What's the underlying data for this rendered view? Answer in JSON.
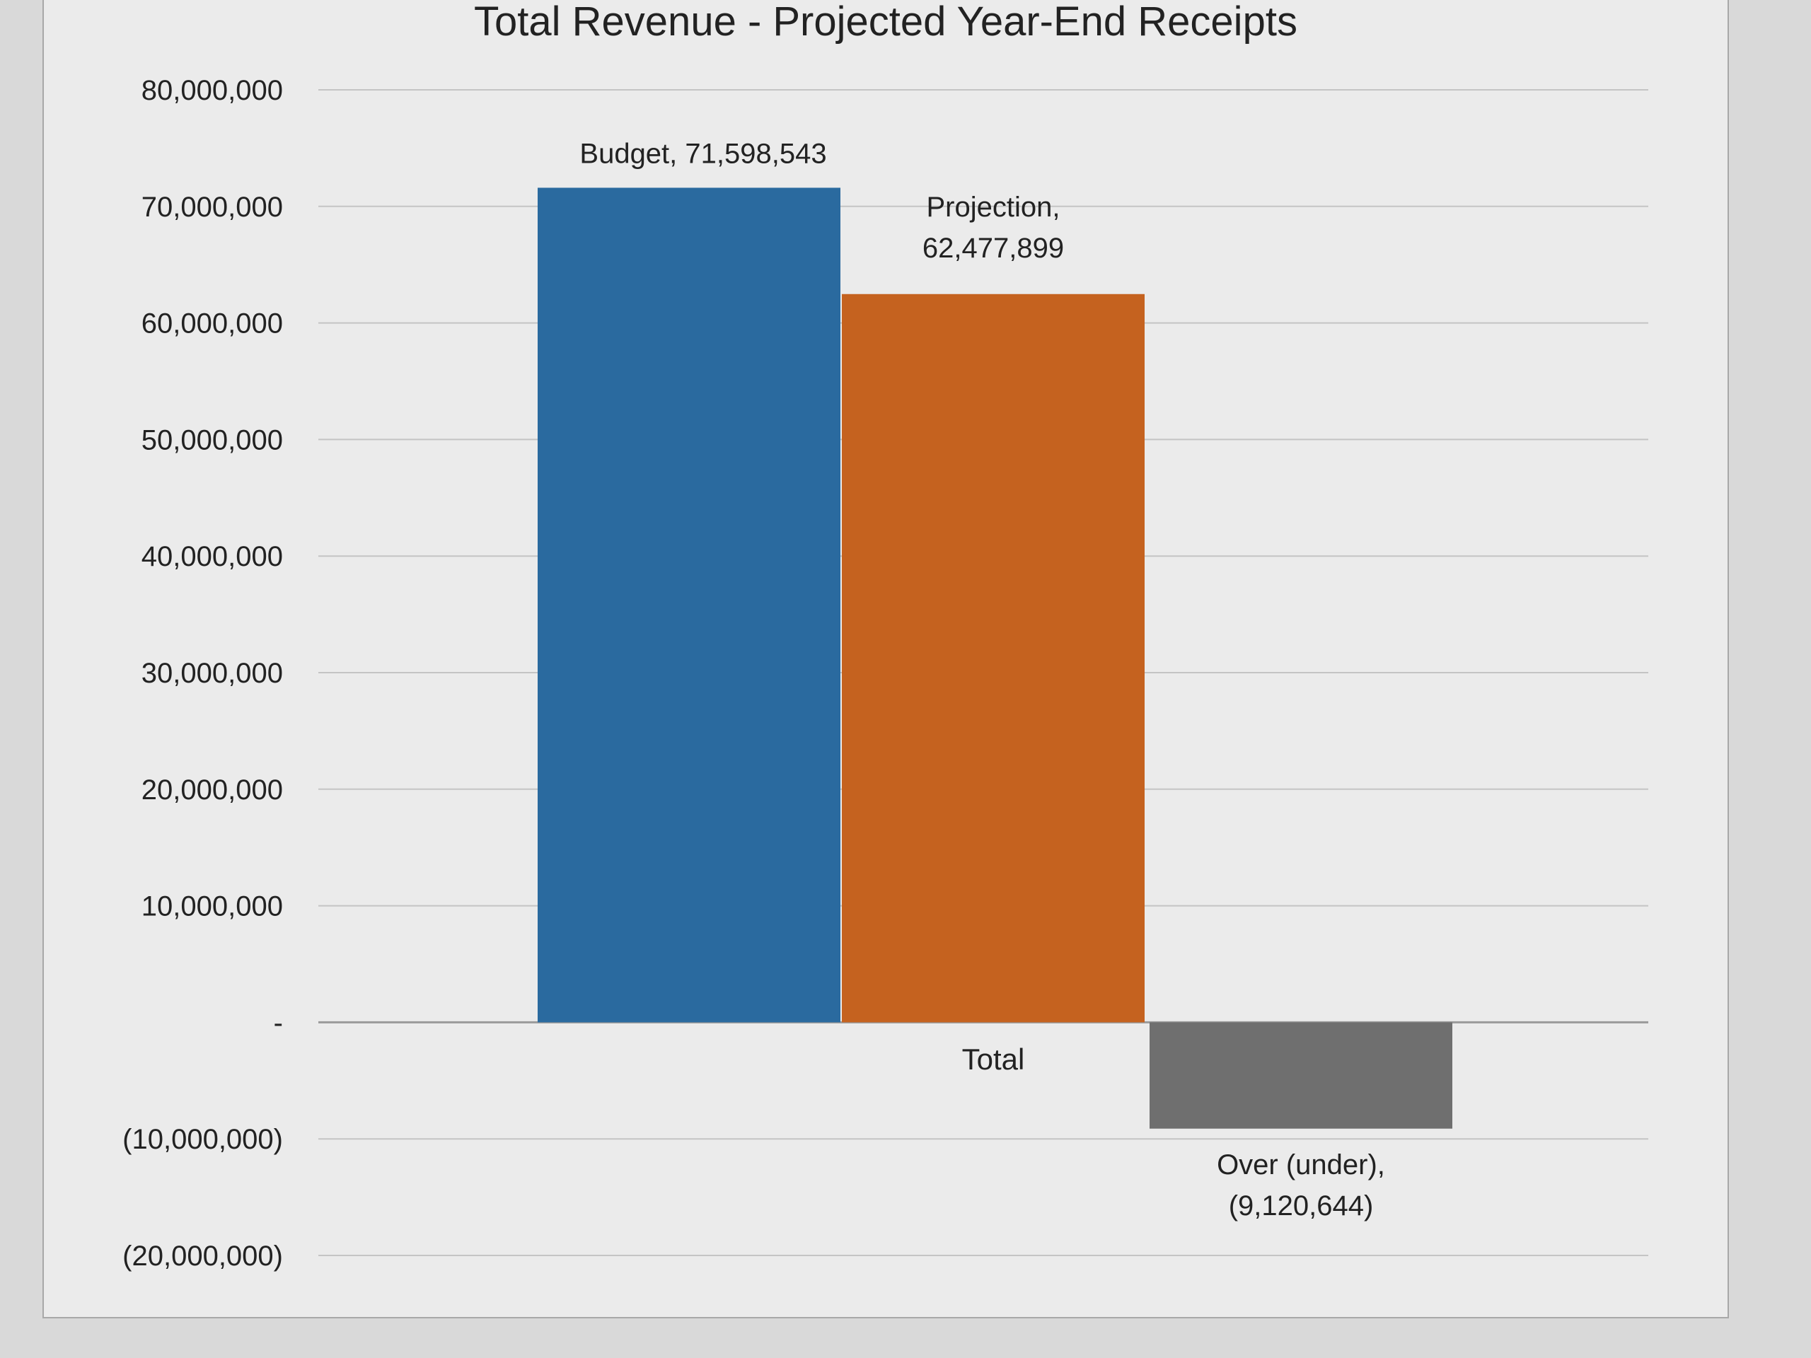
{
  "chart_data": {
    "type": "bar",
    "title": "Total Revenue - Projected Year-End Receipts",
    "categories": [
      "Total"
    ],
    "series": [
      {
        "name": "Budget",
        "values": [
          71598543
        ],
        "label": "Budget, 71,598,543",
        "color": "#2a6a9f"
      },
      {
        "name": "Projection",
        "values": [
          62477899
        ],
        "label_lines": [
          "Projection,",
          "62,477,899"
        ],
        "color": "#c5621f"
      },
      {
        "name": "Over (under)",
        "values": [
          -9120644
        ],
        "label_lines": [
          "Over (under),",
          "(9,120,644)"
        ],
        "color": "#6f6f6f"
      }
    ],
    "ylim": [
      -20000000,
      80000000
    ],
    "yticks": [
      80000000,
      70000000,
      60000000,
      50000000,
      40000000,
      30000000,
      20000000,
      10000000,
      0,
      -10000000,
      -20000000
    ],
    "ytick_labels": [
      "80,000,000",
      "70,000,000",
      "60,000,000",
      "50,000,000",
      "40,000,000",
      "30,000,000",
      "20,000,000",
      "10,000,000",
      "-",
      "(10,000,000)",
      "(20,000,000)"
    ],
    "grid": true,
    "xlabel": "",
    "ylabel": ""
  }
}
